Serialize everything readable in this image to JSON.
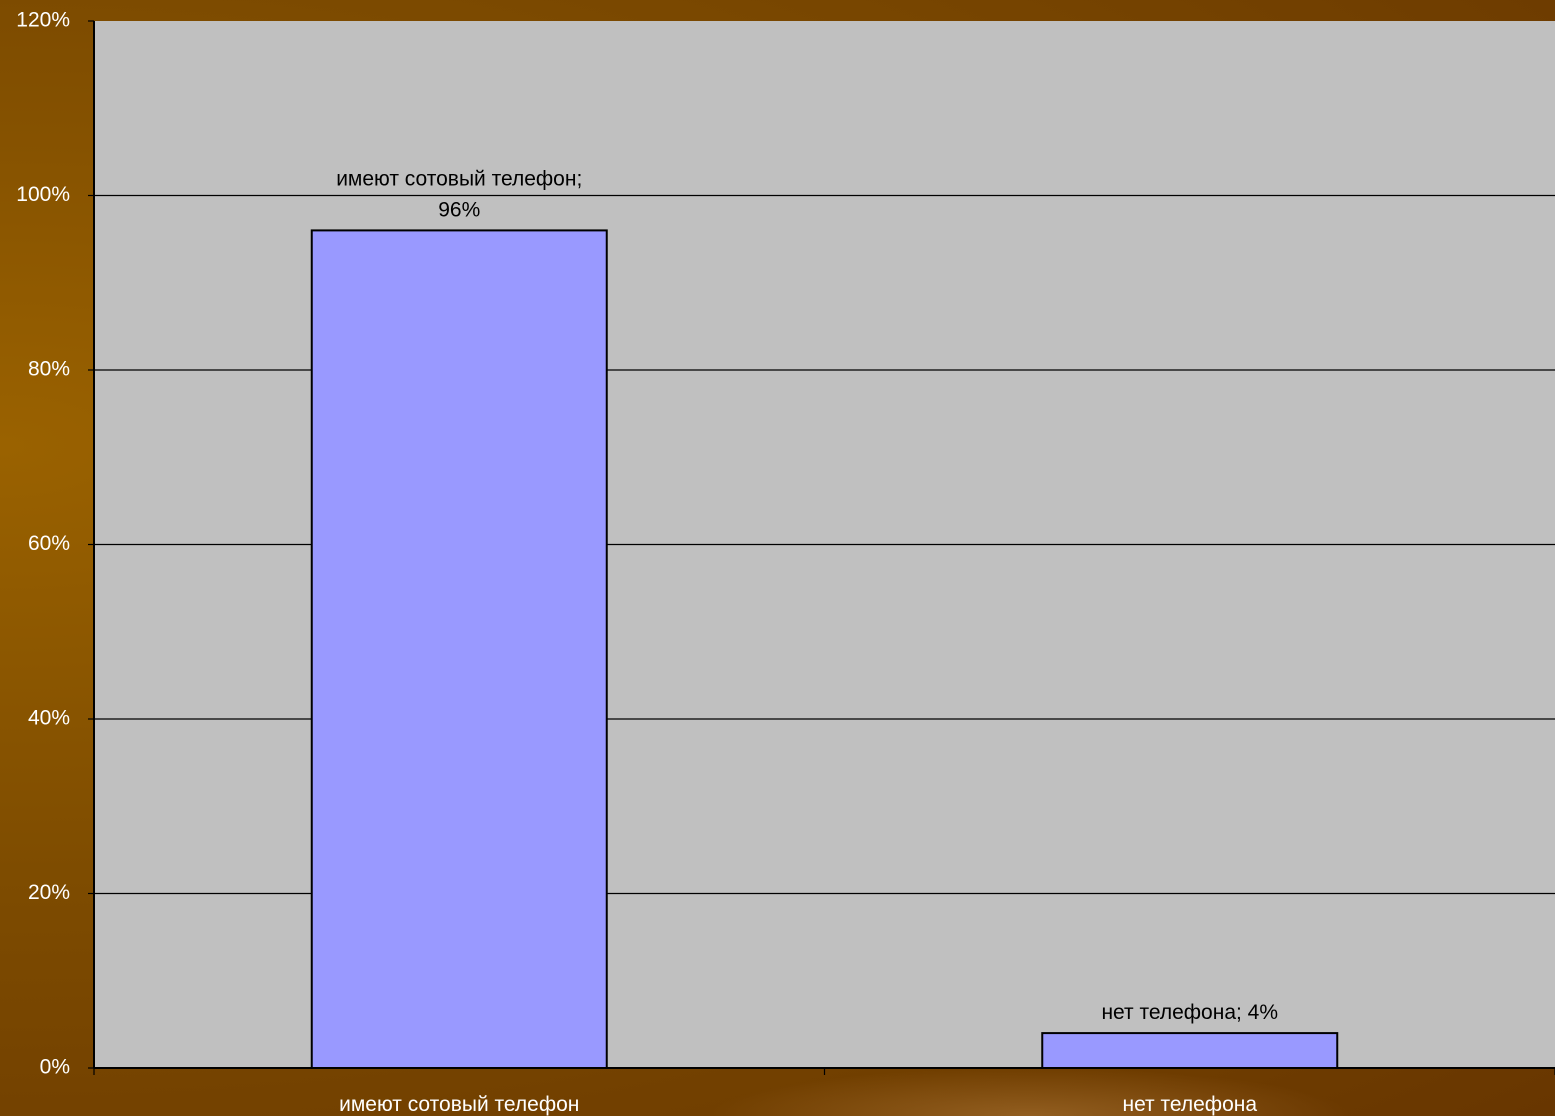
{
  "colors": {
    "plot_background": "#c0c0c0",
    "bar_fill": "#9999ff",
    "bar_stroke": "#000000",
    "gridline": "#000000",
    "label_text": "#ffffff",
    "data_label_text": "#000000"
  },
  "chart_data": {
    "type": "bar",
    "categories": [
      "имеют сотовый телефон",
      "нет телефона"
    ],
    "values": [
      96,
      4
    ],
    "data_labels": [
      [
        "имеют сотовый телефон;",
        "96%"
      ],
      [
        "нет телефона; 4%"
      ]
    ],
    "yticks": [
      "0%",
      "20%",
      "40%",
      "60%",
      "80%",
      "100%",
      "120%"
    ],
    "ylim": [
      0,
      120
    ],
    "unit": "%",
    "grid": true,
    "legend": "none"
  }
}
